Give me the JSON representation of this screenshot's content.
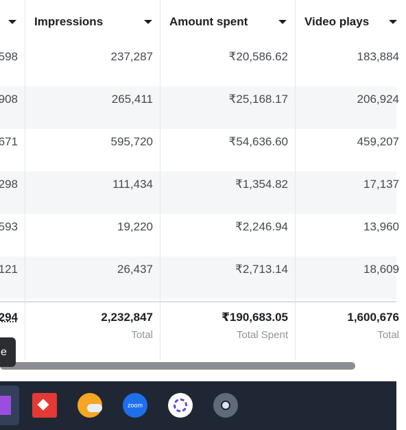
{
  "table": {
    "header": [
      "Impressions",
      "Amount spent",
      "Video plays"
    ],
    "rows": [
      [
        "598",
        "237,287",
        "₹20,586.62",
        "183,884"
      ],
      [
        "908",
        "265,411",
        "₹25,168.17",
        "206,924"
      ],
      [
        "671",
        "595,720",
        "₹54,636.60",
        "459,207"
      ],
      [
        "298",
        "111,434",
        "₹1,354.82",
        "17,137"
      ],
      [
        "593",
        "19,220",
        "₹2,246.94",
        "13,960"
      ],
      [
        "121",
        "26,437",
        "₹2,713.14",
        "18,609"
      ]
    ],
    "totals": [
      "294",
      "2,232,847",
      "₹190,683.05",
      "1,600,676"
    ],
    "total_labels": [
      "Total",
      "Total Spent",
      "Total"
    ]
  },
  "tooltip": "e",
  "taskbar": {
    "zoom_label": "zoom"
  }
}
